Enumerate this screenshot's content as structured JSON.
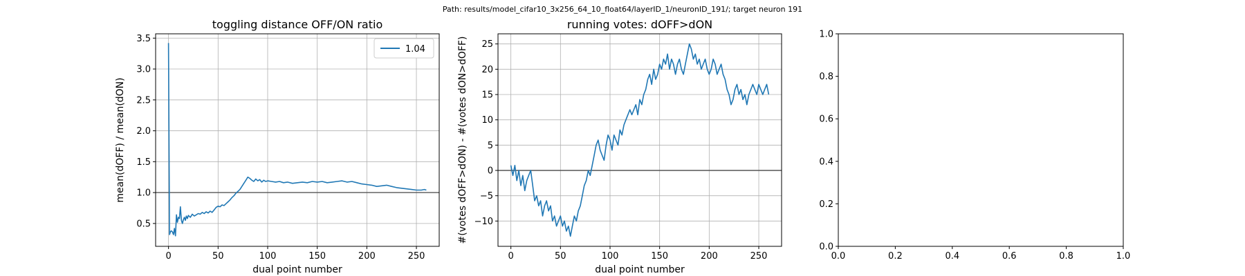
{
  "suptitle": "Path: results/model_cifar10_3x256_64_10_float64/layerID_1/neuronID_191/; target neuron 191",
  "colors": {
    "line": "#1f77b4",
    "grid": "#b0b0b0",
    "refline": "#555555",
    "axis": "#000000"
  },
  "chart_data": [
    {
      "type": "line",
      "title": "toggling distance OFF/ON ratio",
      "xlabel": "dual point number",
      "ylabel": "mean(dOFF) / mean(dON)",
      "xlim": [
        -13,
        273
      ],
      "ylim": [
        0.13,
        3.57
      ],
      "xticks": [
        0,
        50,
        100,
        150,
        200,
        250
      ],
      "xtick_labels": [
        "0",
        "50",
        "100",
        "150",
        "200",
        "250"
      ],
      "yticks": [
        0.5,
        1.0,
        1.5,
        2.0,
        2.5,
        3.0,
        3.5
      ],
      "ytick_labels": [
        "0.5",
        "1.0",
        "1.5",
        "2.0",
        "2.5",
        "3.0",
        "3.5"
      ],
      "grid": true,
      "reference_line": 1.0,
      "legend": {
        "position": "top-right",
        "entries": [
          "1.04"
        ]
      },
      "series": [
        {
          "name": "1.04",
          "x": [
            0,
            1,
            2,
            3,
            4,
            5,
            6,
            7,
            8,
            9,
            10,
            11,
            12,
            13,
            14,
            15,
            16,
            17,
            18,
            19,
            20,
            22,
            24,
            26,
            28,
            30,
            32,
            34,
            36,
            38,
            40,
            42,
            44,
            46,
            48,
            50,
            52,
            54,
            56,
            58,
            60,
            62,
            64,
            66,
            68,
            70,
            72,
            74,
            76,
            78,
            80,
            82,
            84,
            86,
            88,
            90,
            92,
            94,
            96,
            98,
            100,
            104,
            108,
            112,
            116,
            120,
            125,
            130,
            135,
            140,
            145,
            150,
            155,
            160,
            165,
            170,
            175,
            180,
            185,
            190,
            195,
            200,
            205,
            210,
            215,
            220,
            225,
            230,
            235,
            240,
            245,
            250,
            255,
            258,
            260
          ],
          "y": [
            3.42,
            0.32,
            0.37,
            0.38,
            0.36,
            0.32,
            0.42,
            0.3,
            0.64,
            0.52,
            0.6,
            0.58,
            0.77,
            0.55,
            0.5,
            0.56,
            0.6,
            0.55,
            0.62,
            0.58,
            0.63,
            0.6,
            0.65,
            0.62,
            0.64,
            0.66,
            0.65,
            0.68,
            0.66,
            0.69,
            0.67,
            0.7,
            0.68,
            0.72,
            0.76,
            0.78,
            0.77,
            0.8,
            0.79,
            0.82,
            0.85,
            0.88,
            0.92,
            0.95,
            0.99,
            1.02,
            1.05,
            1.1,
            1.15,
            1.2,
            1.25,
            1.23,
            1.2,
            1.18,
            1.22,
            1.19,
            1.21,
            1.17,
            1.2,
            1.18,
            1.19,
            1.18,
            1.17,
            1.18,
            1.16,
            1.17,
            1.15,
            1.16,
            1.17,
            1.16,
            1.18,
            1.17,
            1.18,
            1.16,
            1.17,
            1.18,
            1.19,
            1.17,
            1.18,
            1.16,
            1.14,
            1.13,
            1.12,
            1.1,
            1.11,
            1.12,
            1.1,
            1.08,
            1.07,
            1.06,
            1.05,
            1.04,
            1.04,
            1.05,
            1.04
          ]
        }
      ]
    },
    {
      "type": "line",
      "title": "running votes: dOFF>dON",
      "xlabel": "dual point number",
      "ylabel": "#(votes dOFF>dON) - #(votes dON>dOFF)",
      "xlim": [
        -13,
        273
      ],
      "ylim": [
        -15,
        27
      ],
      "xticks": [
        0,
        50,
        100,
        150,
        200,
        250
      ],
      "xtick_labels": [
        "0",
        "50",
        "100",
        "150",
        "200",
        "250"
      ],
      "yticks": [
        -10,
        -5,
        0,
        5,
        10,
        15,
        20,
        25
      ],
      "ytick_labels": [
        "−10",
        "−5",
        "0",
        "5",
        "10",
        "15",
        "20",
        "25"
      ],
      "grid": true,
      "reference_line": 0,
      "series": [
        {
          "x": [
            0,
            2,
            4,
            6,
            8,
            10,
            12,
            14,
            16,
            18,
            20,
            22,
            24,
            26,
            28,
            30,
            32,
            34,
            36,
            38,
            40,
            42,
            44,
            46,
            48,
            50,
            52,
            54,
            56,
            58,
            60,
            62,
            64,
            66,
            68,
            70,
            72,
            74,
            76,
            78,
            80,
            82,
            84,
            86,
            88,
            90,
            92,
            94,
            96,
            98,
            100,
            102,
            104,
            106,
            108,
            110,
            112,
            114,
            116,
            118,
            120,
            122,
            124,
            126,
            128,
            130,
            132,
            134,
            136,
            138,
            140,
            142,
            144,
            146,
            148,
            150,
            152,
            154,
            156,
            158,
            160,
            162,
            164,
            166,
            168,
            170,
            172,
            174,
            176,
            178,
            180,
            182,
            184,
            186,
            188,
            190,
            192,
            194,
            196,
            198,
            200,
            202,
            204,
            206,
            208,
            210,
            212,
            214,
            216,
            218,
            220,
            222,
            224,
            226,
            228,
            230,
            232,
            234,
            236,
            238,
            240,
            242,
            244,
            246,
            248,
            250,
            252,
            254,
            256,
            258,
            260
          ],
          "y": [
            1,
            -1,
            1,
            -2,
            0,
            -3,
            -1,
            -4,
            -2,
            -1,
            0,
            -3,
            -6,
            -5,
            -7,
            -6,
            -9,
            -7,
            -6,
            -8,
            -7,
            -10,
            -9,
            -11,
            -10,
            -9,
            -11,
            -10,
            -12,
            -11,
            -13,
            -11,
            -9,
            -10,
            -8,
            -7,
            -5,
            -3,
            -2,
            0,
            -1,
            1,
            3,
            5,
            6,
            4,
            3,
            2,
            5,
            7,
            6,
            4,
            7,
            6,
            5,
            8,
            7,
            9,
            10,
            11,
            12,
            11,
            12,
            13,
            11,
            14,
            13,
            15,
            16,
            18,
            19,
            17,
            20,
            18,
            19,
            21,
            20,
            22,
            21,
            23,
            20,
            22,
            21,
            19,
            21,
            22,
            20,
            19,
            21,
            23,
            25,
            24,
            22,
            23,
            21,
            22,
            20,
            21,
            22,
            20,
            19,
            20,
            22,
            21,
            19,
            20,
            21,
            19,
            18,
            16,
            15,
            13,
            14,
            16,
            17,
            15,
            16,
            14,
            15,
            13,
            15,
            16,
            17,
            16,
            15,
            17,
            16,
            15,
            16,
            17,
            15
          ]
        }
      ]
    },
    {
      "type": "line",
      "title": "",
      "xlabel": "",
      "ylabel": "",
      "xlim": [
        0,
        1
      ],
      "ylim": [
        0,
        1
      ],
      "xticks": [
        0,
        0.2,
        0.4,
        0.6,
        0.8,
        1.0
      ],
      "xtick_labels": [
        "0.0",
        "0.2",
        "0.4",
        "0.6",
        "0.8",
        "1.0"
      ],
      "yticks": [
        0,
        0.2,
        0.4,
        0.6,
        0.8,
        1.0
      ],
      "ytick_labels": [
        "0.0",
        "0.2",
        "0.4",
        "0.6",
        "0.8",
        "1.0"
      ],
      "grid": false,
      "series": []
    }
  ]
}
